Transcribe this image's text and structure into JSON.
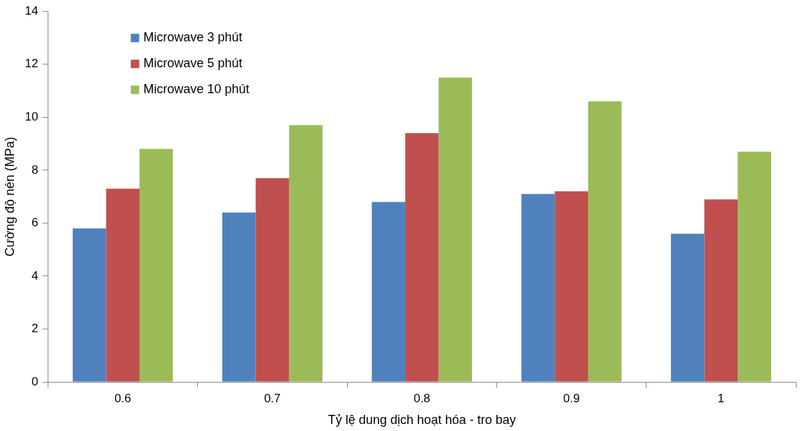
{
  "chart_data": {
    "type": "bar",
    "xlabel": "Tỷ lệ dung dịch hoạt hóa - tro bay",
    "ylabel": "Cường độ nén (MPa)",
    "categories": [
      "0.6",
      "0.7",
      "0.8",
      "0.9",
      "1"
    ],
    "series": [
      {
        "name": "Microwave 3 phút",
        "color": "#4f81bd",
        "values": [
          5.8,
          6.4,
          6.8,
          7.1,
          5.6
        ]
      },
      {
        "name": "Microwave 5 phút",
        "color": "#c0504d",
        "values": [
          7.3,
          7.7,
          9.4,
          7.2,
          6.9
        ]
      },
      {
        "name": "Microwave 10 phút",
        "color": "#9bbb59",
        "values": [
          8.8,
          9.7,
          11.5,
          10.6,
          8.7
        ]
      }
    ],
    "ylim": [
      0,
      14
    ],
    "yticks": [
      0,
      2,
      4,
      6,
      8,
      10,
      12,
      14
    ],
    "grid": false,
    "legend": "top left"
  }
}
